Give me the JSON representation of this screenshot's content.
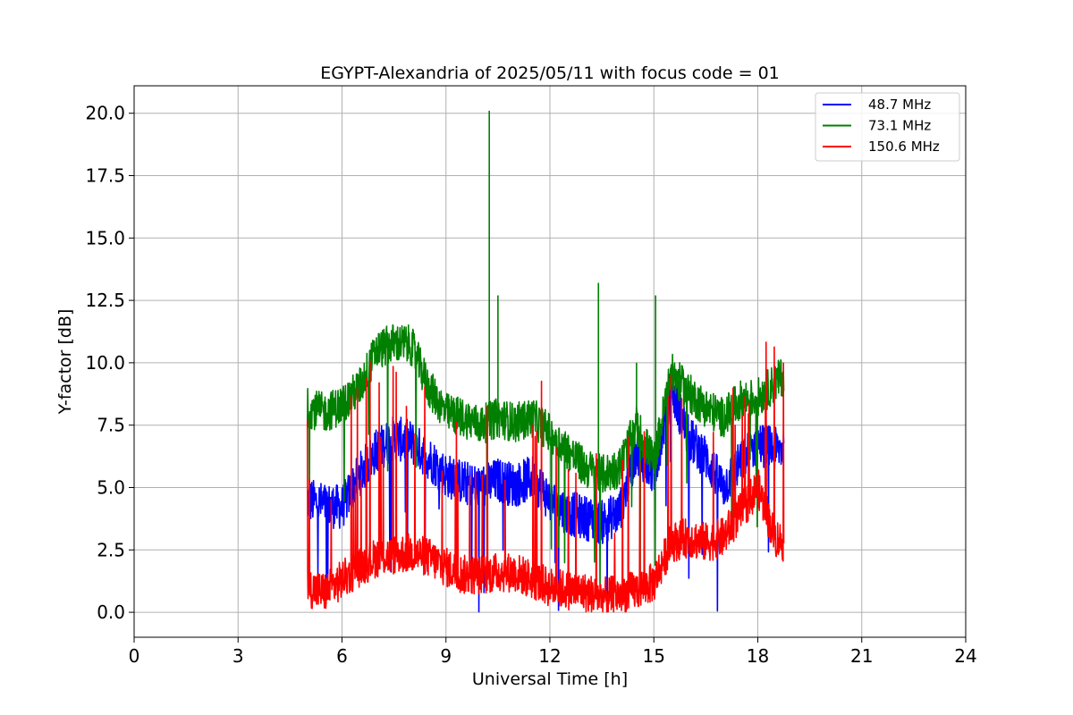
{
  "chart_data": {
    "type": "line",
    "title": "EGYPT-Alexandria of 2025/05/11 with focus code = 01",
    "xlabel": "Universal Time [h]",
    "ylabel": "Y-factor [dB]",
    "xlim": [
      0,
      24
    ],
    "ylim": [
      -1.0,
      21.1
    ],
    "xticks": [
      0,
      3,
      6,
      9,
      12,
      15,
      18,
      21,
      24
    ],
    "xtick_labels": [
      "0",
      "3",
      "6",
      "9",
      "12",
      "15",
      "18",
      "21",
      "24"
    ],
    "yticks": [
      0,
      2.5,
      5,
      7.5,
      10,
      12.5,
      15,
      17.5,
      20
    ],
    "ytick_labels": [
      "0.0",
      "2.5",
      "5.0",
      "7.5",
      "10.0",
      "12.5",
      "15.0",
      "17.5",
      "20.0"
    ],
    "grid": true,
    "legend_position": "top-right",
    "x_range": [
      5.0,
      18.75
    ],
    "series": [
      {
        "name": "48.7 MHz",
        "color": "#0000ff",
        "x": [
          5.0,
          5.5,
          6.0,
          6.5,
          7.0,
          7.5,
          8.0,
          8.5,
          9.0,
          9.5,
          10.0,
          10.5,
          11.0,
          11.5,
          12.0,
          12.5,
          13.0,
          13.5,
          14.0,
          14.5,
          15.0,
          15.5,
          16.0,
          16.5,
          17.0,
          17.5,
          18.0,
          18.5,
          18.75
        ],
        "y": [
          4.5,
          4.3,
          4.2,
          5.5,
          6.5,
          7.0,
          6.8,
          6.2,
          5.5,
          5.2,
          5.0,
          5.3,
          5.1,
          5.4,
          4.5,
          4.0,
          3.8,
          3.6,
          4.0,
          6.5,
          5.5,
          9.0,
          7.0,
          6.2,
          5.0,
          6.0,
          6.8,
          6.5,
          6.6
        ],
        "noise": 0.9
      },
      {
        "name": "73.1 MHz",
        "color": "#008000",
        "x": [
          5.0,
          5.5,
          6.0,
          6.5,
          7.0,
          7.5,
          8.0,
          8.5,
          9.0,
          9.5,
          10.0,
          10.5,
          11.0,
          11.5,
          12.0,
          12.5,
          13.0,
          13.5,
          14.0,
          14.5,
          15.0,
          15.5,
          16.0,
          16.5,
          17.0,
          17.5,
          18.0,
          18.5,
          18.75
        ],
        "y": [
          8.2,
          8.0,
          8.3,
          9.0,
          10.5,
          10.8,
          10.7,
          9.0,
          8.0,
          7.8,
          7.5,
          7.8,
          7.6,
          7.8,
          7.2,
          6.5,
          5.8,
          5.5,
          5.8,
          7.5,
          6.0,
          9.6,
          8.8,
          8.2,
          7.8,
          8.5,
          8.6,
          9.2,
          9.5
        ],
        "noise": 0.8,
        "spikes": [
          {
            "x": 10.25,
            "y": 20.1
          },
          {
            "x": 10.5,
            "y": 12.7
          },
          {
            "x": 13.4,
            "y": 13.2
          },
          {
            "x": 15.05,
            "y": 12.7
          },
          {
            "x": 14.5,
            "y": 10.0
          }
        ]
      },
      {
        "name": "150.6 MHz",
        "color": "#ff0000",
        "x": [
          5.0,
          5.5,
          6.0,
          6.5,
          7.0,
          7.5,
          8.0,
          8.5,
          9.0,
          9.5,
          10.0,
          10.5,
          11.0,
          11.5,
          12.0,
          12.5,
          13.0,
          13.5,
          14.0,
          14.5,
          15.0,
          15.5,
          16.0,
          16.5,
          17.0,
          17.5,
          18.0,
          18.5,
          18.75
        ],
        "y": [
          1.0,
          0.8,
          1.3,
          1.8,
          2.2,
          2.3,
          2.4,
          2.2,
          1.8,
          1.5,
          1.5,
          1.6,
          1.6,
          1.3,
          1.0,
          0.9,
          0.8,
          0.6,
          0.7,
          0.9,
          1.2,
          2.8,
          3.0,
          2.8,
          3.0,
          4.0,
          5.0,
          3.0,
          2.8
        ],
        "noise": 0.8
      }
    ]
  }
}
